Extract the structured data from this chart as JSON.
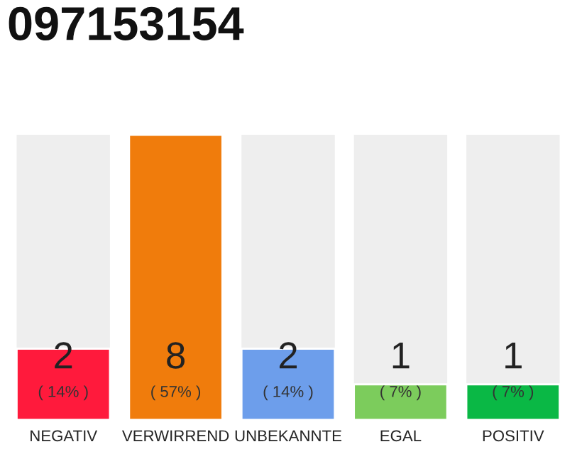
{
  "chart_data": {
    "type": "bar",
    "title": "097153154",
    "categories": [
      "NEGATIV",
      "VERWIRREND",
      "UNBEKANNTE",
      "EGAL",
      "POSITIV"
    ],
    "values": [
      2,
      8,
      2,
      1,
      1
    ],
    "colors": [
      "#ff1a3c",
      "#f07c0c",
      "#6d9eeb",
      "#7ccc5c",
      "#0ab845"
    ],
    "ylim": [
      0,
      8
    ],
    "tick_labels": "x",
    "data_labels": true,
    "grid": false,
    "legend": false,
    "annotations": [
      "( 14% )",
      "( 57% )",
      "( 14% )",
      "( 7% )",
      "( 7% )"
    ]
  }
}
